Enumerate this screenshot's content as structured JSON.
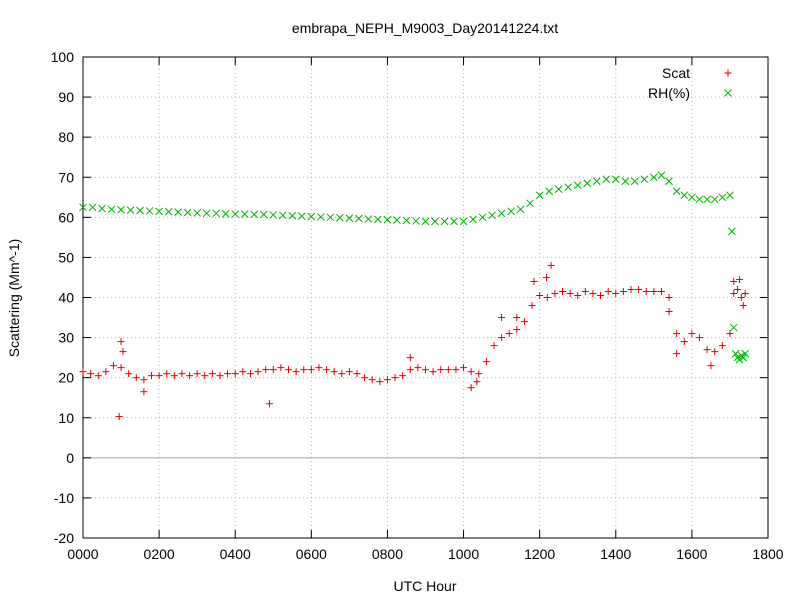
{
  "chart_data": {
    "type": "scatter",
    "title": "embrapa_NEPH_M9003_Day20141224.txt",
    "xlabel": "UTC Hour",
    "ylabel": "Scattering (Mm^-1)",
    "xlim": [
      0,
      1800
    ],
    "ylim": [
      -20,
      100
    ],
    "x_ticks": [
      0,
      200,
      400,
      600,
      800,
      1000,
      1200,
      1400,
      1600,
      1800
    ],
    "x_tick_labels": [
      "0000",
      "0200",
      "0400",
      "0600",
      "0800",
      "1000",
      "1200",
      "1400",
      "1600",
      "1800"
    ],
    "y_ticks": [
      -20,
      -10,
      0,
      10,
      20,
      30,
      40,
      50,
      60,
      70,
      80,
      90,
      100
    ],
    "y_tick_labels": [
      "-20",
      "-10",
      "0",
      "10",
      "20",
      "30",
      "40",
      "50",
      "60",
      "70",
      "80",
      "90",
      "100"
    ],
    "grid": true,
    "zero_line": true,
    "legend_position": "top-right",
    "series": [
      {
        "name": "Scat",
        "marker": "plus",
        "color": "#e00000",
        "points": [
          [
            0,
            21.5
          ],
          [
            20,
            21
          ],
          [
            40,
            20.5
          ],
          [
            60,
            21.5
          ],
          [
            80,
            23
          ],
          [
            100,
            22.5
          ],
          [
            120,
            21
          ],
          [
            140,
            20
          ],
          [
            160,
            19.5
          ],
          [
            180,
            20.5
          ],
          [
            200,
            20.5
          ],
          [
            220,
            21
          ],
          [
            240,
            20.5
          ],
          [
            260,
            21
          ],
          [
            280,
            20.5
          ],
          [
            300,
            21
          ],
          [
            320,
            20.5
          ],
          [
            340,
            21
          ],
          [
            360,
            20.5
          ],
          [
            380,
            21
          ],
          [
            400,
            21
          ],
          [
            420,
            21.5
          ],
          [
            440,
            21
          ],
          [
            460,
            21.5
          ],
          [
            480,
            22
          ],
          [
            500,
            22
          ],
          [
            520,
            22.5
          ],
          [
            540,
            22
          ],
          [
            560,
            21.5
          ],
          [
            580,
            22
          ],
          [
            600,
            22
          ],
          [
            620,
            22.5
          ],
          [
            640,
            22
          ],
          [
            660,
            21.5
          ],
          [
            680,
            21
          ],
          [
            700,
            21.5
          ],
          [
            720,
            21
          ],
          [
            740,
            20
          ],
          [
            760,
            19.5
          ],
          [
            780,
            19
          ],
          [
            800,
            19.5
          ],
          [
            820,
            20
          ],
          [
            840,
            20.5
          ],
          [
            860,
            22
          ],
          [
            880,
            22.5
          ],
          [
            900,
            22
          ],
          [
            920,
            21.5
          ],
          [
            940,
            22
          ],
          [
            960,
            22
          ],
          [
            980,
            22
          ],
          [
            1000,
            22.5
          ],
          [
            1020,
            21.5
          ],
          [
            1040,
            21
          ],
          [
            1060,
            24
          ],
          [
            1080,
            28
          ],
          [
            1100,
            30
          ],
          [
            1120,
            31
          ],
          [
            1140,
            32
          ],
          [
            1160,
            34
          ],
          [
            1180,
            38
          ],
          [
            1200,
            40.5
          ],
          [
            1220,
            40
          ],
          [
            1240,
            41
          ],
          [
            1260,
            41.5
          ],
          [
            1280,
            41
          ],
          [
            1300,
            40.5
          ],
          [
            1320,
            41.5
          ],
          [
            1340,
            41
          ],
          [
            1360,
            40.5
          ],
          [
            1380,
            41.5
          ],
          [
            1400,
            41
          ],
          [
            1420,
            41.5
          ],
          [
            1440,
            42
          ],
          [
            1460,
            42
          ],
          [
            1480,
            41.5
          ],
          [
            1500,
            41.5
          ],
          [
            1520,
            41.5
          ],
          [
            1540,
            40
          ],
          [
            1560,
            31
          ],
          [
            1580,
            29
          ],
          [
            1600,
            31
          ],
          [
            1620,
            30
          ],
          [
            1640,
            27
          ],
          [
            1660,
            26.5
          ],
          [
            1680,
            28
          ],
          [
            1700,
            31
          ],
          [
            1710,
            41
          ],
          [
            1720,
            42
          ],
          [
            1730,
            40
          ],
          [
            1740,
            41
          ],
          [
            95,
            10.3
          ],
          [
            100,
            29
          ],
          [
            105,
            26.5
          ],
          [
            160,
            16.5
          ],
          [
            490,
            13.5
          ],
          [
            1230,
            48
          ],
          [
            1218,
            45
          ],
          [
            1185,
            44
          ],
          [
            1540,
            36.5
          ],
          [
            1560,
            26
          ],
          [
            1650,
            23
          ],
          [
            1710,
            44
          ],
          [
            1725,
            44.5
          ],
          [
            1735,
            38
          ],
          [
            1020,
            17.5
          ],
          [
            1035,
            19
          ],
          [
            860,
            25
          ],
          [
            1100,
            35
          ],
          [
            1140,
            35
          ]
        ]
      },
      {
        "name": "RH(%)",
        "marker": "cross",
        "color": "#00b000",
        "points": [
          [
            0,
            62.5
          ],
          [
            25,
            62.5
          ],
          [
            50,
            62.2
          ],
          [
            75,
            62
          ],
          [
            100,
            61.9
          ],
          [
            125,
            61.8
          ],
          [
            150,
            61.7
          ],
          [
            175,
            61.6
          ],
          [
            200,
            61.5
          ],
          [
            225,
            61.4
          ],
          [
            250,
            61.3
          ],
          [
            275,
            61.2
          ],
          [
            300,
            61.1
          ],
          [
            325,
            61
          ],
          [
            350,
            61
          ],
          [
            375,
            60.9
          ],
          [
            400,
            60.8
          ],
          [
            425,
            60.8
          ],
          [
            450,
            60.7
          ],
          [
            475,
            60.7
          ],
          [
            500,
            60.6
          ],
          [
            525,
            60.5
          ],
          [
            550,
            60.4
          ],
          [
            575,
            60.3
          ],
          [
            600,
            60.2
          ],
          [
            625,
            60.1
          ],
          [
            650,
            60
          ],
          [
            675,
            59.9
          ],
          [
            700,
            59.8
          ],
          [
            725,
            59.7
          ],
          [
            750,
            59.6
          ],
          [
            775,
            59.5
          ],
          [
            800,
            59.4
          ],
          [
            825,
            59.3
          ],
          [
            850,
            59.2
          ],
          [
            875,
            59.1
          ],
          [
            900,
            59
          ],
          [
            925,
            59
          ],
          [
            950,
            59
          ],
          [
            975,
            59
          ],
          [
            1000,
            59
          ],
          [
            1025,
            59.5
          ],
          [
            1050,
            60
          ],
          [
            1075,
            60.5
          ],
          [
            1100,
            61
          ],
          [
            1125,
            61.5
          ],
          [
            1150,
            62
          ],
          [
            1175,
            63.5
          ],
          [
            1200,
            65.5
          ],
          [
            1225,
            66.5
          ],
          [
            1250,
            67
          ],
          [
            1275,
            67.5
          ],
          [
            1300,
            68
          ],
          [
            1325,
            68.5
          ],
          [
            1350,
            69
          ],
          [
            1375,
            69.5
          ],
          [
            1400,
            69.5
          ],
          [
            1425,
            69
          ],
          [
            1450,
            69
          ],
          [
            1475,
            69.5
          ],
          [
            1500,
            70
          ],
          [
            1520,
            70.5
          ],
          [
            1540,
            69
          ],
          [
            1560,
            66.5
          ],
          [
            1580,
            65.5
          ],
          [
            1600,
            65
          ],
          [
            1620,
            64.5
          ],
          [
            1640,
            64.5
          ],
          [
            1660,
            64.5
          ],
          [
            1680,
            65
          ],
          [
            1700,
            65.5
          ],
          [
            1705,
            56.5
          ],
          [
            1710,
            32.5
          ],
          [
            1715,
            26
          ],
          [
            1720,
            25
          ],
          [
            1725,
            24.5
          ],
          [
            1730,
            25.5
          ],
          [
            1735,
            25
          ],
          [
            1740,
            26
          ]
        ]
      }
    ]
  }
}
